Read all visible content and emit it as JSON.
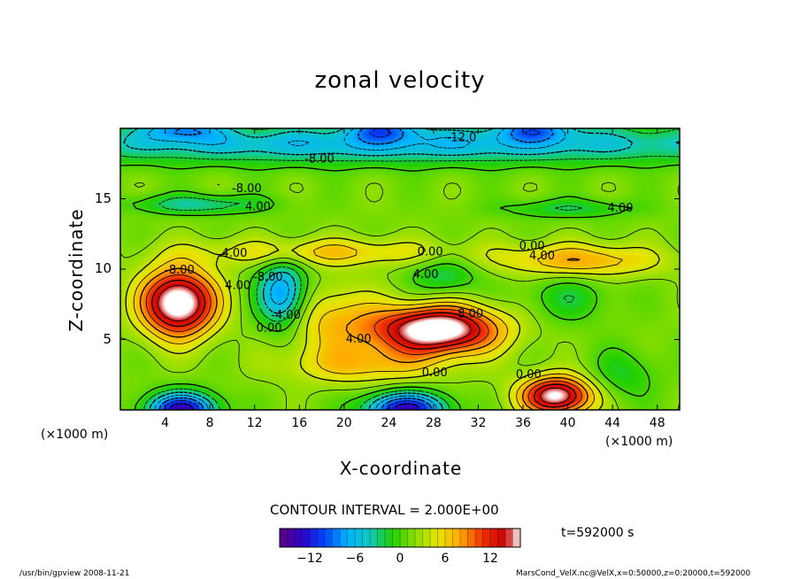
{
  "chart_data": {
    "type": "heatmap",
    "title": "zonal velocity",
    "xlabel": "X-coordinate",
    "ylabel": "Z-coordinate",
    "x_unit_left": "(×1000 m)",
    "x_unit_right": "(×1000 m)",
    "xlim": [
      0,
      50
    ],
    "ylim": [
      0,
      20
    ],
    "x_ticks": [
      "4",
      "8",
      "12",
      "16",
      "20",
      "24",
      "28",
      "32",
      "36",
      "40",
      "44",
      "48"
    ],
    "x_tick_values": [
      4,
      8,
      12,
      16,
      20,
      24,
      28,
      32,
      36,
      40,
      44,
      48
    ],
    "y_ticks": [
      "5",
      "10",
      "15"
    ],
    "y_tick_values": [
      5,
      10,
      15
    ],
    "contour_interval_text": "CONTOUR INTERVAL = 2.000E+00",
    "colorbar": {
      "range": [
        -16,
        16
      ],
      "ticks": [
        "−12",
        "−6",
        "0",
        "6",
        "12"
      ],
      "tick_values": [
        -12,
        -6,
        0,
        6,
        12
      ]
    },
    "contour_labels": [
      {
        "text": "-12.0",
        "x": 30.5,
        "z": 19.3
      },
      {
        "text": "-8.00",
        "x": 17.8,
        "z": 17.8
      },
      {
        "text": "-8.00",
        "x": 11.3,
        "z": 15.7
      },
      {
        "text": "4.00",
        "x": 12.3,
        "z": 14.4
      },
      {
        "text": "4.00",
        "x": 44.7,
        "z": 14.3
      },
      {
        "text": "4.00",
        "x": 10.2,
        "z": 11.1
      },
      {
        "text": "-8.00",
        "x": 5.3,
        "z": 9.9
      },
      {
        "text": "4.00",
        "x": 10.5,
        "z": 8.8
      },
      {
        "text": "-8.00",
        "x": 13.2,
        "z": 9.4
      },
      {
        "text": "-4.00",
        "x": 14.8,
        "z": 6.7
      },
      {
        "text": "0.00",
        "x": 13.3,
        "z": 5.8
      },
      {
        "text": "0.00",
        "x": 27.7,
        "z": 11.2
      },
      {
        "text": "4.00",
        "x": 27.3,
        "z": 9.6
      },
      {
        "text": "0.00",
        "x": 36.8,
        "z": 11.6
      },
      {
        "text": "4.00",
        "x": 37.7,
        "z": 10.9
      },
      {
        "text": "8.00",
        "x": 31.3,
        "z": 6.8
      },
      {
        "text": "4.00",
        "x": 21.3,
        "z": 5.0
      },
      {
        "text": "0.00",
        "x": 28.1,
        "z": 2.6
      },
      {
        "text": "0.00",
        "x": 36.5,
        "z": 2.5
      }
    ],
    "features": [
      {
        "kind": "max",
        "x": 5.2,
        "z": 7.6,
        "value": 16
      },
      {
        "kind": "max",
        "x": 28.3,
        "z": 5.7,
        "value": 16
      },
      {
        "kind": "max",
        "x": 39.0,
        "z": 1.0,
        "value": 14
      },
      {
        "kind": "min",
        "x": 14.5,
        "z": 8.2,
        "value": -10
      },
      {
        "kind": "min",
        "x": 5.5,
        "z": 0.0,
        "value": -14
      },
      {
        "kind": "min",
        "x": 25.5,
        "z": 0.0,
        "value": -14
      },
      {
        "kind": "min",
        "x": 5.5,
        "z": 20.0,
        "value": -14
      },
      {
        "kind": "min",
        "x": 23.5,
        "z": 20.0,
        "value": -14
      },
      {
        "kind": "min",
        "x": 37.0,
        "z": 20.0,
        "value": -14
      }
    ]
  },
  "time_label": "t=592000 s",
  "footer": {
    "left": "/usr/bin/gpview  2008-11-21",
    "right": "MarsCond_VelX.nc@VelX,x=0:50000,z=0:20000,t=592000"
  },
  "colors": {
    "colormap": [
      "#600080",
      "#2b00c8",
      "#0047ff",
      "#00b4ff",
      "#10c8c0",
      "#22d000",
      "#8ade00",
      "#e6e600",
      "#ffaa00",
      "#f03000",
      "#c80000",
      "#ffffff"
    ]
  }
}
